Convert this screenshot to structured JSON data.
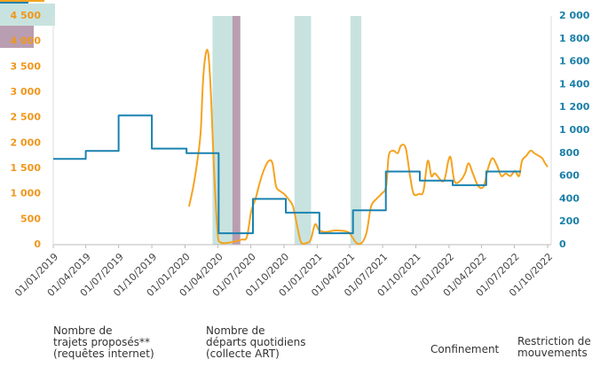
{
  "chart_data": {
    "type": "line",
    "xlim": [
      "2019-01-01",
      "2022-10-01"
    ],
    "xticks": [
      {
        "value": "2019-01-01",
        "label": "01/01/2019"
      },
      {
        "value": "2019-04-01",
        "label": "01/04/2019"
      },
      {
        "value": "2019-07-01",
        "label": "01/07/2019"
      },
      {
        "value": "2019-10-01",
        "label": "01/10/2019"
      },
      {
        "value": "2020-01-01",
        "label": "01/01/2020"
      },
      {
        "value": "2020-04-01",
        "label": "01/04/2020"
      },
      {
        "value": "2020-07-01",
        "label": "01/07/2020"
      },
      {
        "value": "2020-10-01",
        "label": "01/10/2020"
      },
      {
        "value": "2021-01-01",
        "label": "01/01/2021"
      },
      {
        "value": "2021-04-01",
        "label": "01/04/2021"
      },
      {
        "value": "2021-07-01",
        "label": "01/07/2021"
      },
      {
        "value": "2021-10-01",
        "label": "01/10/2021"
      },
      {
        "value": "2022-01-01",
        "label": "01/01/2022"
      },
      {
        "value": "2022-04-01",
        "label": "01/04/2022"
      },
      {
        "value": "2022-07-01",
        "label": "01/07/2022"
      },
      {
        "value": "2022-10-01",
        "label": "01/10/2022"
      }
    ],
    "ylim": [
      0,
      4500
    ],
    "yticks": [
      0,
      500,
      {
        "value": 1000,
        "label": "1 000"
      },
      {
        "value": 1500,
        "label": "1 500"
      },
      {
        "value": 2000,
        "label": "2 000"
      },
      {
        "value": 2500,
        "label": "2 500"
      },
      {
        "value": 3000,
        "label": "3 000"
      },
      {
        "value": 3500,
        "label": "3 500"
      },
      {
        "value": 4000,
        "label": "4 000"
      },
      {
        "value": 4500,
        "label": "4 500"
      }
    ],
    "y2lim": [
      0,
      2000
    ],
    "y2ticks": [
      0,
      200,
      400,
      600,
      800,
      {
        "value": 1000,
        "label": "1 000"
      },
      {
        "value": 1200,
        "label": "1 200"
      },
      {
        "value": 1400,
        "label": "1 400"
      },
      {
        "value": 1600,
        "label": "1 600"
      },
      {
        "value": 1800,
        "label": "1 800"
      },
      {
        "value": 2000,
        "label": "2 000"
      }
    ],
    "y_color": "#f0961a",
    "y2_color": "#1a7fa8",
    "periods": [
      {
        "name": "Confinement",
        "color": "#c8e3df",
        "ranges": [
          [
            "2020-03-17",
            "2020-05-11"
          ],
          [
            "2020-10-30",
            "2020-12-15"
          ],
          [
            "2021-04-03",
            "2021-05-03"
          ]
        ]
      },
      {
        "name": "Restriction de\nmouvements",
        "color": "#b99db1",
        "ranges": [
          [
            "2020-05-11",
            "2020-06-02"
          ]
        ]
      }
    ],
    "series": [
      {
        "name": "Nombre de\ntrajets proposés**\n(requêtes internet)",
        "color": "#f5a31f",
        "axis": "y",
        "smooth": true,
        "x": [
          "2020-01-12",
          "2020-01-24",
          "2020-02-03",
          "2020-02-13",
          "2020-02-20",
          "2020-02-28",
          "2020-03-06",
          "2020-03-13",
          "2020-03-21",
          "2020-03-31",
          "2020-04-07",
          "2020-05-02",
          "2020-06-05",
          "2020-06-20",
          "2020-07-02",
          "2020-07-14",
          "2020-07-27",
          "2020-08-08",
          "2020-08-20",
          "2020-08-30",
          "2020-09-09",
          "2020-09-21",
          "2020-10-01",
          "2020-10-13",
          "2020-10-26",
          "2020-11-07",
          "2020-11-17",
          "2020-12-01",
          "2020-12-14",
          "2020-12-26",
          "2021-01-07",
          "2021-01-27",
          "2021-02-20",
          "2021-03-27",
          "2021-04-08",
          "2021-04-20",
          "2021-05-05",
          "2021-05-18",
          "2021-05-30",
          "2021-06-14",
          "2021-06-28",
          "2021-07-11",
          "2021-07-18",
          "2021-07-30",
          "2021-08-12",
          "2021-08-21",
          "2021-09-03",
          "2021-09-15",
          "2021-09-25",
          "2021-10-10",
          "2021-10-22",
          "2021-11-03",
          "2021-11-13",
          "2021-11-23",
          "2021-12-17",
          "2021-12-30",
          "2022-01-06",
          "2022-01-16",
          "2022-01-31",
          "2022-02-14",
          "2022-02-24",
          "2022-03-08",
          "2022-03-23",
          "2022-04-07",
          "2022-04-19",
          "2022-05-01",
          "2022-05-14",
          "2022-05-26",
          "2022-06-07",
          "2022-06-20",
          "2022-07-02",
          "2022-07-14",
          "2022-07-22",
          "2022-08-03",
          "2022-08-15",
          "2022-08-25",
          "2022-09-06",
          "2022-09-16",
          "2022-09-24",
          "2022-10-01"
        ],
        "values": [
          750,
          1150,
          1600,
          2200,
          3250,
          3780,
          3720,
          2900,
          1500,
          250,
          50,
          40,
          100,
          150,
          650,
          900,
          1250,
          1500,
          1650,
          1600,
          1150,
          1050,
          1000,
          900,
          750,
          350,
          50,
          30,
          100,
          400,
          280,
          250,
          280,
          250,
          150,
          30,
          40,
          250,
          750,
          900,
          1000,
          1150,
          1750,
          1850,
          1800,
          1950,
          1900,
          1350,
          1000,
          1000,
          1050,
          1650,
          1350,
          1400,
          1250,
          1650,
          1700,
          1250,
          1250,
          1400,
          1600,
          1400,
          1150,
          1150,
          1500,
          1700,
          1550,
          1350,
          1400,
          1350,
          1450,
          1350,
          1650,
          1750,
          1850,
          1800,
          1750,
          1700,
          1600,
          1530
        ]
      },
      {
        "name": "Nombre de\ndéparts quotidiens\n(collecte ART)",
        "color": "#1a82b0",
        "axis": "y2",
        "smooth": false,
        "x": [
          "2019-01-01",
          "2019-04-01",
          "2019-04-01",
          "2019-07-01",
          "2019-07-01",
          "2019-10-01",
          "2019-10-01",
          "2020-01-05",
          "2020-01-05",
          "2020-04-03",
          "2020-04-03",
          "2020-07-07",
          "2020-07-07",
          "2020-10-06",
          "2020-10-06",
          "2021-01-07",
          "2021-01-07",
          "2021-04-10",
          "2021-04-10",
          "2021-07-10",
          "2021-07-10",
          "2021-10-12",
          "2021-10-12",
          "2022-01-11",
          "2022-01-11",
          "2022-04-14",
          "2022-04-14",
          "2022-07-19"
        ],
        "values": [
          750,
          750,
          820,
          820,
          1130,
          1130,
          840,
          840,
          800,
          800,
          100,
          100,
          400,
          400,
          280,
          280,
          100,
          100,
          300,
          300,
          640,
          640,
          560,
          560,
          520,
          520,
          640,
          640
        ]
      }
    ]
  }
}
